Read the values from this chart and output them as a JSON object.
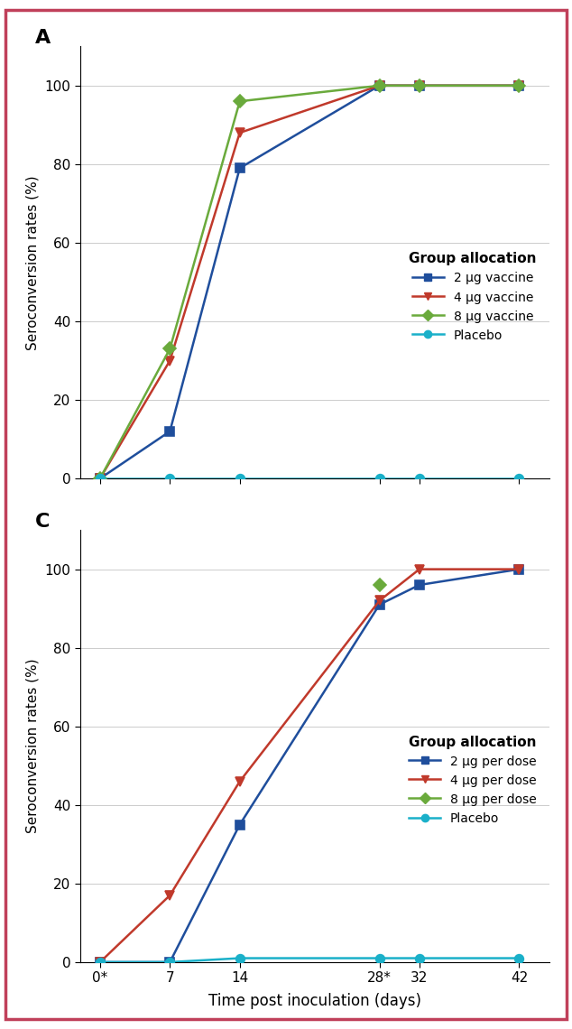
{
  "panel_A": {
    "label": "A",
    "x_values": [
      0,
      7,
      14,
      28,
      32,
      42
    ],
    "x_ticklabels": [
      "0*",
      "7",
      "14",
      "28*",
      "32",
      "42"
    ],
    "series": [
      {
        "name": "2 μg vaccine",
        "color": "#1f4e9c",
        "marker": "s",
        "values": [
          0,
          12,
          79,
          100,
          100,
          100
        ]
      },
      {
        "name": "4 μg vaccine",
        "color": "#c0392b",
        "marker": "v",
        "values": [
          0,
          30,
          88,
          100,
          100,
          100
        ]
      },
      {
        "name": "8 μg vaccine",
        "color": "#6aaa3c",
        "marker": "D",
        "values": [
          0,
          33,
          96,
          100,
          100,
          100
        ]
      },
      {
        "name": "Placebo",
        "color": "#1ab0c9",
        "marker": "o",
        "values": [
          0,
          0,
          0,
          0,
          0,
          0
        ]
      }
    ],
    "ylabel": "Seroconversion rates (%)",
    "ylim": [
      0,
      110
    ],
    "yticks": [
      0,
      20,
      40,
      60,
      80,
      100
    ],
    "legend_title": "Group allocation"
  },
  "panel_C": {
    "label": "C",
    "x_values": [
      0,
      7,
      14,
      28,
      32,
      42
    ],
    "x_ticklabels": [
      "0*",
      "7",
      "14",
      "28*",
      "32",
      "42"
    ],
    "series": [
      {
        "name": "2 μg per dose",
        "color": "#1f4e9c",
        "marker": "s",
        "values": [
          0,
          0,
          35,
          91,
          96,
          100
        ]
      },
      {
        "name": "4 μg per dose",
        "color": "#c0392b",
        "marker": "v",
        "values": [
          0,
          17,
          46,
          92,
          100,
          100
        ]
      },
      {
        "name": "8 μg per dose",
        "color": "#6aaa3c",
        "marker": "D",
        "values": [
          null,
          null,
          null,
          96,
          null,
          null
        ]
      },
      {
        "name": "Placebo",
        "color": "#1ab0c9",
        "marker": "o",
        "values": [
          0,
          0,
          1,
          1,
          1,
          1
        ]
      }
    ],
    "ylabel": "Seroconversion rates (%)",
    "xlabel": "Time post inoculation (days)",
    "ylim": [
      0,
      110
    ],
    "yticks": [
      0,
      20,
      40,
      60,
      80,
      100
    ],
    "legend_title": "Group allocation"
  },
  "bg_color": "#ffffff",
  "border_color": "#c0405a",
  "line_width": 1.8,
  "marker_size": 7
}
